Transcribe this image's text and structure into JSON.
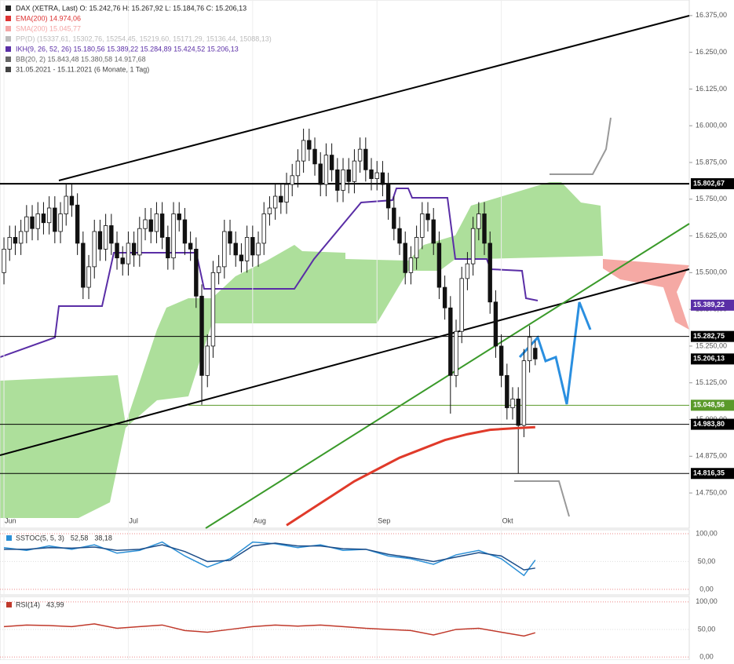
{
  "chart_data": {
    "type": "candlestick",
    "header": [
      "DAX (XETRA, Last)  O: 15.242,76  H: 15.267,92  L: 15.184,76  C: 15.206,13",
      "EMA(200)  14.974,06",
      "SMA(200)  15.045,77",
      "PP(D)  (15337,61, 15302,76, 15254,45, 15219,60, 15171,29, 15136,44, 15088,13)",
      "IKH(9, 26, 52, 26)  15.180,56  15.389,22  15.284,89  15.424,52  15.206,13",
      "BB(20, 2)  15.843,48  15.380,58  14.917,68",
      "31.05.2021 - 15.11.2021  (6 Monate, 1 Tag)"
    ],
    "header_colors": [
      "#222",
      "#d33",
      "#f4a6a6",
      "#bbb",
      "#5a2ea6",
      "#666",
      "#444"
    ],
    "xlim": [
      -0.7,
      121.25
    ],
    "xticks": [
      {
        "value": 0,
        "label": "Jun"
      },
      {
        "value": 22,
        "label": "Jul"
      },
      {
        "value": 44,
        "label": "Aug"
      },
      {
        "value": 66,
        "label": "Sep"
      },
      {
        "value": 88,
        "label": "Okt"
      }
    ],
    "ylim": [
      14630,
      16428
    ],
    "yticks": [
      {
        "value": 16375,
        "label": "16.375,00"
      },
      {
        "value": 16250,
        "label": "16.250,00"
      },
      {
        "value": 16125,
        "label": "16.125,00"
      },
      {
        "value": 16000,
        "label": "16.000,00"
      },
      {
        "value": 15875,
        "label": "15.875,00"
      },
      {
        "value": 15750,
        "label": "15.750,00"
      },
      {
        "value": 15625,
        "label": "15.625,00"
      },
      {
        "value": 15500,
        "label": "15.500,00"
      },
      {
        "value": 15375,
        "label": "15.375,00"
      },
      {
        "value": 15250,
        "label": "15.250,00"
      },
      {
        "value": 15125,
        "label": "15.125,00"
      },
      {
        "value": 15000,
        "label": "15.000,00"
      },
      {
        "value": 14875,
        "label": "14.875,00"
      },
      {
        "value": 14750,
        "label": "14.750,00"
      }
    ],
    "candles": {
      "open": [
        15500,
        15580,
        15620,
        15600,
        15640,
        15690,
        15650,
        15700,
        15670,
        15720,
        15640,
        15700,
        15760,
        15730,
        15600,
        15450,
        15520,
        15640,
        15580,
        15660,
        15600,
        15550,
        15530,
        15600,
        15560,
        15650,
        15680,
        15640,
        15700,
        15620,
        15550,
        15700,
        15680,
        15600,
        15580,
        15420,
        15150,
        15250,
        15500,
        15520,
        15640,
        15600,
        15560,
        15540,
        15620,
        15560,
        15600,
        15700,
        15720,
        15760,
        15740,
        15800,
        15830,
        15880,
        15950,
        15920,
        15870,
        15800,
        15900,
        15850,
        15780,
        15850,
        15810,
        15880,
        15920,
        15850,
        15820,
        15840,
        15800,
        15720,
        15650,
        15600,
        15500,
        15550,
        15620,
        15700,
        15680,
        15600,
        15450,
        15380,
        15150,
        15300,
        15480,
        15530,
        15650,
        15700,
        15600,
        15400,
        15250,
        15150,
        15040,
        15070,
        14980,
        15200,
        15242.76
      ],
      "high": [
        15620,
        15660,
        15660,
        15680,
        15730,
        15730,
        15740,
        15740,
        15760,
        15760,
        15740,
        15800,
        15800,
        15770,
        15640,
        15560,
        15680,
        15680,
        15700,
        15700,
        15640,
        15590,
        15640,
        15640,
        15690,
        15720,
        15720,
        15740,
        15740,
        15660,
        15740,
        15740,
        15720,
        15640,
        15620,
        15460,
        15290,
        15540,
        15560,
        15680,
        15680,
        15640,
        15600,
        15660,
        15660,
        15640,
        15740,
        15760,
        15800,
        15800,
        15840,
        15870,
        15920,
        15990,
        15990,
        15960,
        15910,
        15940,
        15940,
        15890,
        15890,
        15890,
        15920,
        15960,
        15960,
        15890,
        15880,
        15880,
        15840,
        15760,
        15690,
        15640,
        15590,
        15660,
        15740,
        15740,
        15720,
        15640,
        15490,
        15420,
        15340,
        15520,
        15570,
        15690,
        15740,
        15740,
        15640,
        15440,
        15290,
        15190,
        15110,
        15110,
        15240,
        15320,
        15267.92
      ],
      "low": [
        15460,
        15540,
        15560,
        15560,
        15600,
        15610,
        15610,
        15630,
        15630,
        15600,
        15600,
        15660,
        15690,
        15560,
        15410,
        15410,
        15480,
        15540,
        15540,
        15560,
        15510,
        15490,
        15490,
        15520,
        15520,
        15610,
        15600,
        15600,
        15580,
        15510,
        15510,
        15640,
        15560,
        15540,
        15380,
        15050,
        15110,
        15210,
        15460,
        15480,
        15560,
        15520,
        15500,
        15500,
        15520,
        15520,
        15560,
        15660,
        15680,
        15700,
        15700,
        15760,
        15790,
        15840,
        15880,
        15830,
        15760,
        15760,
        15810,
        15740,
        15740,
        15770,
        15770,
        15840,
        15810,
        15780,
        15780,
        15760,
        15680,
        15610,
        15560,
        15460,
        15460,
        15510,
        15580,
        15640,
        15560,
        15410,
        15340,
        15020,
        15110,
        15260,
        15440,
        15490,
        15610,
        15560,
        15360,
        15210,
        15110,
        15000,
        15000,
        14816,
        14940,
        15160,
        15184.76
      ],
      "close": [
        15580,
        15620,
        15600,
        15640,
        15690,
        15650,
        15700,
        15670,
        15720,
        15640,
        15700,
        15760,
        15730,
        15600,
        15450,
        15520,
        15640,
        15580,
        15660,
        15600,
        15550,
        15530,
        15600,
        15560,
        15650,
        15680,
        15640,
        15700,
        15620,
        15550,
        15700,
        15680,
        15600,
        15580,
        15420,
        15150,
        15250,
        15500,
        15520,
        15640,
        15600,
        15560,
        15540,
        15620,
        15560,
        15600,
        15700,
        15720,
        15760,
        15740,
        15800,
        15830,
        15880,
        15950,
        15920,
        15870,
        15800,
        15900,
        15850,
        15780,
        15850,
        15810,
        15880,
        15920,
        15850,
        15820,
        15840,
        15800,
        15720,
        15650,
        15600,
        15500,
        15550,
        15620,
        15700,
        15680,
        15600,
        15450,
        15380,
        15150,
        15300,
        15480,
        15530,
        15650,
        15700,
        15600,
        15400,
        15250,
        15150,
        15040,
        15070,
        14980,
        15200,
        15280,
        15206.13
      ]
    },
    "ema": {
      "color": "#e03a2a",
      "x": [
        50,
        54,
        58,
        62,
        66,
        70,
        74,
        78,
        82,
        86,
        90,
        94
      ],
      "values": [
        14640,
        14690,
        14740,
        14790,
        14830,
        14870,
        14900,
        14930,
        14950,
        14965,
        14970,
        14974
      ]
    },
    "levels": [
      {
        "value": 15802.67,
        "label": "15.802,67",
        "color": "#000"
      },
      {
        "value": 15389.22,
        "label": "15.389,22",
        "color": "#5a2ea6"
      },
      {
        "value": 15282.75,
        "label": "15.282,75",
        "color": "#000"
      },
      {
        "value": 15206.13,
        "label": "15.206,13",
        "color": "#000"
      },
      {
        "value": 15048.56,
        "label": "15.048,56",
        "color": "#5a9a2a"
      },
      {
        "value": 14983.8,
        "label": "14.983,80",
        "color": "#000"
      },
      {
        "value": 14816.35,
        "label": "14.816,35",
        "color": "#000"
      }
    ],
    "stoch": {
      "title": "SSTOC(5, 5, 3)",
      "ylim": [
        -10,
        107
      ],
      "yticks": [
        {
          "value": 100,
          "label": "100,00"
        },
        {
          "value": 50,
          "label": "50,00"
        },
        {
          "value": 0,
          "label": "0,00"
        }
      ],
      "x": [
        0,
        4,
        8,
        12,
        16,
        20,
        24,
        28,
        32,
        36,
        40,
        44,
        48,
        52,
        56,
        60,
        64,
        68,
        72,
        76,
        80,
        84,
        88,
        92,
        94
      ],
      "series": [
        {
          "name": "52,58",
          "color": "#2a8fd6",
          "values": [
            75,
            70,
            78,
            72,
            80,
            65,
            70,
            85,
            60,
            40,
            55,
            85,
            82,
            75,
            80,
            70,
            72,
            60,
            55,
            45,
            62,
            70,
            55,
            25,
            52.58
          ]
        },
        {
          "name": "38,18",
          "color": "#1d4e89",
          "values": [
            72,
            72,
            75,
            74,
            76,
            70,
            72,
            80,
            68,
            50,
            52,
            78,
            83,
            78,
            78,
            73,
            72,
            63,
            57,
            50,
            58,
            66,
            60,
            35,
            38.18
          ]
        }
      ]
    },
    "rsi": {
      "title": "RSI(14)",
      "ylim": [
        -5.6,
        109.7
      ],
      "yticks": [
        {
          "value": 100,
          "label": "100,00"
        },
        {
          "value": 50,
          "label": "50,00"
        },
        {
          "value": 0,
          "label": "0,00"
        }
      ],
      "x": [
        0,
        4,
        8,
        12,
        16,
        20,
        24,
        28,
        32,
        36,
        40,
        44,
        48,
        52,
        56,
        60,
        64,
        68,
        72,
        76,
        80,
        84,
        88,
        92,
        94
      ],
      "series": [
        {
          "name": "43,99",
          "color": "#c0392b",
          "values": [
            55,
            58,
            57,
            55,
            60,
            52,
            55,
            58,
            48,
            45,
            50,
            55,
            58,
            56,
            58,
            55,
            52,
            50,
            48,
            40,
            50,
            52,
            45,
            38,
            43.99
          ]
        }
      ]
    }
  }
}
